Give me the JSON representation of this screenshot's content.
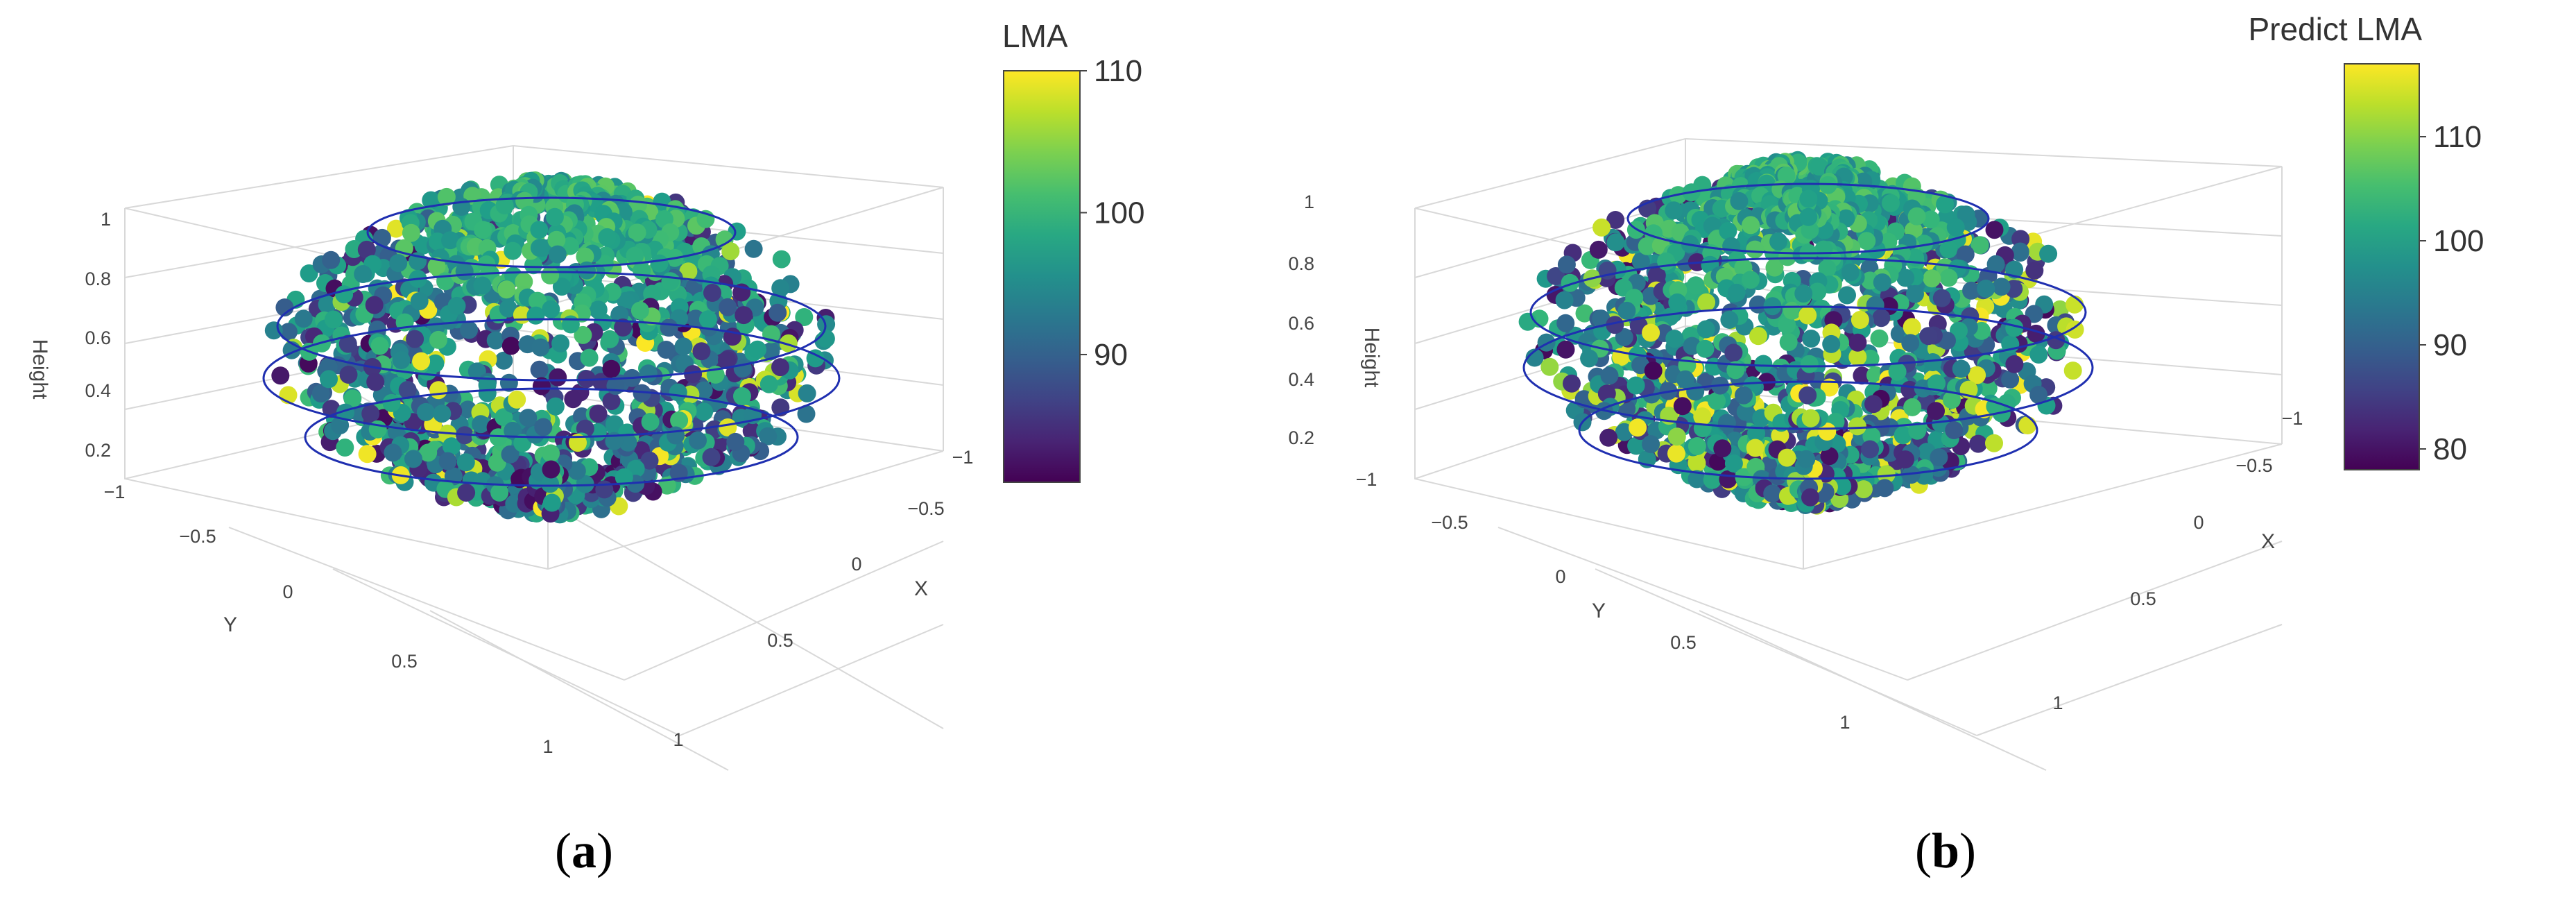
{
  "chart_data": [
    {
      "type": "scatter",
      "panel_label": "a",
      "colorbar": {
        "title": "LMA",
        "ticks": [
          "110",
          "100",
          "90"
        ],
        "range": [
          81,
          110
        ]
      },
      "axes": {
        "xlabel": "X",
        "ylabel": "Y",
        "zlabel": "Height",
        "x_ticks": [
          "−1",
          "−0.5",
          "0",
          "0.5",
          "1"
        ],
        "y_ticks": [
          "−1",
          "−0.5",
          "0",
          "0.5",
          "1"
        ],
        "z_ticks": [
          "0.2",
          "0.4",
          "0.6",
          "0.8",
          "1"
        ]
      },
      "rings": 4,
      "colorscale": "viridis"
    },
    {
      "type": "scatter",
      "panel_label": "b",
      "colorbar": {
        "title": "Predict  LMA",
        "ticks": [
          "110",
          "100",
          "90",
          "80"
        ],
        "range": [
          78,
          117
        ]
      },
      "axes": {
        "xlabel": "X",
        "ylabel": "Y",
        "zlabel": "Height",
        "x_ticks": [
          "−1",
          "−0.5",
          "0",
          "0.5",
          "1"
        ],
        "y_ticks": [
          "−1",
          "−0.5",
          "0",
          "0.5",
          "1"
        ],
        "z_ticks": [
          "0.2",
          "0.4",
          "0.6",
          "0.8",
          "1"
        ]
      },
      "rings": 4,
      "colorscale": "viridis"
    }
  ],
  "captions": [
    {
      "open": "(",
      "letter": "a",
      "close": ")"
    },
    {
      "open": "(",
      "letter": "b",
      "close": ")"
    }
  ]
}
